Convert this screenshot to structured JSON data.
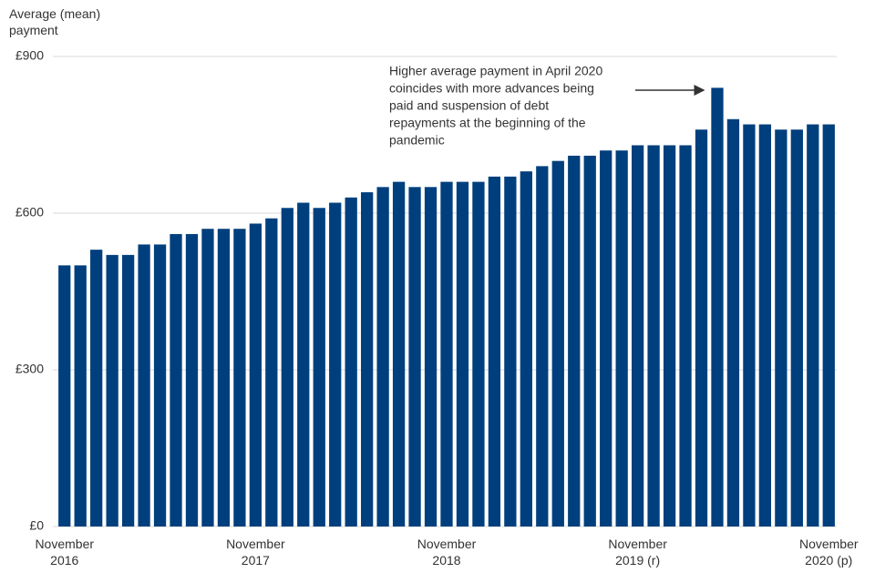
{
  "chart_data": {
    "type": "bar",
    "y_axis_label": "Average (mean) payment",
    "annotation": [
      "Higher average payment in April 2020",
      "coincides with more advances being",
      "paid and suspension of debt",
      "repayments at the beginning of the",
      "pandemic"
    ],
    "categories": [
      "November 2016",
      null,
      null,
      null,
      null,
      null,
      null,
      null,
      null,
      null,
      null,
      null,
      "November 2017",
      null,
      null,
      null,
      null,
      null,
      null,
      null,
      null,
      null,
      null,
      null,
      "November 2018",
      null,
      null,
      null,
      null,
      null,
      null,
      null,
      null,
      null,
      null,
      null,
      "November 2019 (r)",
      null,
      null,
      null,
      null,
      null,
      null,
      null,
      null,
      null,
      null,
      null,
      "November 2020 (p)"
    ],
    "values": [
      500,
      500,
      530,
      520,
      520,
      540,
      540,
      560,
      560,
      570,
      570,
      570,
      580,
      590,
      610,
      620,
      610,
      620,
      630,
      640,
      650,
      660,
      650,
      650,
      660,
      660,
      660,
      670,
      670,
      680,
      690,
      700,
      710,
      710,
      720,
      720,
      730,
      730,
      730,
      730,
      760,
      840,
      780,
      770,
      770,
      760,
      760,
      770,
      770
    ],
    "color": "#003f7d",
    "ylim": [
      0,
      900
    ],
    "yticks": [
      {
        "value": 0,
        "label": "£0"
      },
      {
        "value": 300,
        "label": "£300"
      },
      {
        "value": 600,
        "label": "£600"
      },
      {
        "value": 900,
        "label": "£900"
      }
    ],
    "grid": true
  }
}
